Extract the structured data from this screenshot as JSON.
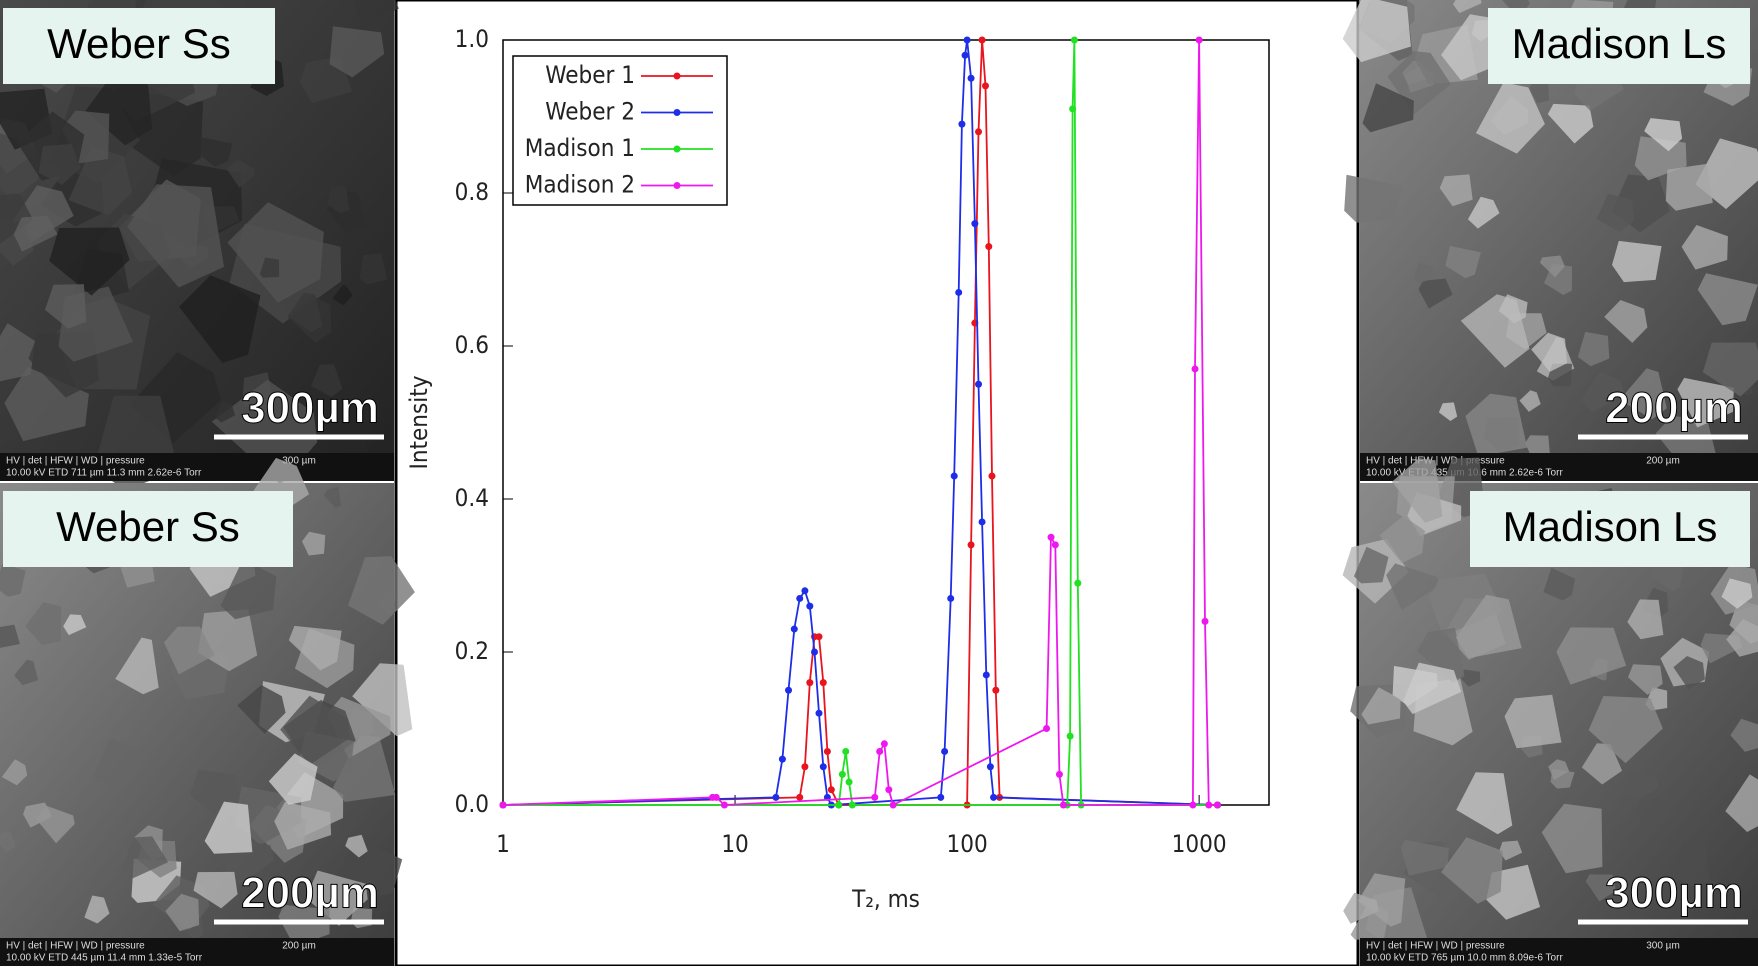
{
  "panels": [
    {
      "label": "Weber Ss",
      "scale": "300µm",
      "info_head": "HV | det | HFW | WD | pressure",
      "info_vals": "10.00 kV ETD 711 µm 11.3 mm 2.62e-6 Torr",
      "bar": "300 µm"
    },
    {
      "label": "Weber Ss",
      "scale": "200µm",
      "info_head": "HV | det | HFW | WD | pressure",
      "info_vals": "10.00 kV ETD 445 µm 11.4 mm 1.33e-5 Torr",
      "bar": "200 µm"
    },
    {
      "label": "Madison Ls",
      "scale": "200µm",
      "info_head": "HV | det | HFW | WD | pressure",
      "info_vals": "10.00 kV ETD 435 µm 10.6 mm 2.62e-6 Torr",
      "bar": "200 µm"
    },
    {
      "label": "Madison Ls",
      "scale": "300µm",
      "info_head": "HV | det | HFW | WD | pressure",
      "info_vals": "10.00 kV ETD 765 µm 10.0 mm 8.09e-6 Torr",
      "bar": "300 µm"
    }
  ],
  "chart_data": {
    "type": "line",
    "xlabel": "T₂, ms",
    "ylabel": "Intensity",
    "xscale": "log",
    "legend": "upper left",
    "xlim": [
      1,
      2000
    ],
    "xticks": [
      1,
      10,
      100,
      1000
    ],
    "ylim": [
      0,
      1
    ],
    "yticks": [
      {
        "value": 0,
        "label": "0.0"
      },
      {
        "value": 0.2,
        "label": "0.2"
      },
      {
        "value": 0.4,
        "label": "0.4"
      },
      {
        "value": 0.6,
        "label": "0.6"
      },
      {
        "value": 0.8,
        "label": "0.8"
      },
      {
        "value": 1,
        "label": "1.0"
      }
    ],
    "series": [
      {
        "name": "Weber 1",
        "color": "#e8141e",
        "x": [
          1,
          19,
          20,
          21,
          22,
          23,
          24,
          25,
          26,
          28,
          100,
          104,
          108,
          112,
          116,
          120,
          124,
          128,
          133,
          138,
          1200
        ],
        "values": [
          0,
          0.01,
          0.05,
          0.16,
          0.22,
          0.22,
          0.16,
          0.07,
          0.02,
          0,
          0,
          0.34,
          0.63,
          0.88,
          1.0,
          0.94,
          0.73,
          0.43,
          0.15,
          0.01,
          0
        ]
      },
      {
        "name": "Weber 2",
        "color": "#1e2ee8",
        "x": [
          1,
          15,
          16,
          17,
          18,
          19,
          20,
          21,
          22,
          23,
          24,
          25,
          26,
          77,
          80,
          85,
          88,
          92,
          95,
          98,
          100,
          104,
          108,
          112,
          116,
          121,
          126,
          130,
          1200
        ],
        "values": [
          0,
          0.01,
          0.06,
          0.15,
          0.23,
          0.27,
          0.28,
          0.26,
          0.2,
          0.12,
          0.05,
          0.01,
          0,
          0.01,
          0.07,
          0.27,
          0.43,
          0.67,
          0.89,
          0.98,
          1.0,
          0.95,
          0.76,
          0.55,
          0.37,
          0.17,
          0.05,
          0.01,
          0
        ]
      },
      {
        "name": "Madison 1",
        "color": "#22e022",
        "x": [
          1,
          28,
          29,
          30,
          31,
          32,
          270,
          278,
          285,
          290,
          300,
          310,
          1200
        ],
        "values": [
          0,
          0,
          0.04,
          0.07,
          0.03,
          0,
          0,
          0.09,
          0.91,
          1.0,
          0.29,
          0,
          0
        ]
      },
      {
        "name": "Madison 2",
        "color": "#ee18ee",
        "x": [
          1,
          8,
          8.3,
          9,
          40,
          42,
          44,
          46,
          48,
          220,
          230,
          240,
          250,
          260,
          940,
          960,
          1000,
          1060,
          1100,
          1200
        ],
        "values": [
          0,
          0.01,
          0.01,
          0,
          0.01,
          0.07,
          0.08,
          0.02,
          0,
          0.1,
          0.35,
          0.34,
          0.04,
          0,
          0,
          0.57,
          1.0,
          0.24,
          0,
          0
        ]
      }
    ]
  }
}
